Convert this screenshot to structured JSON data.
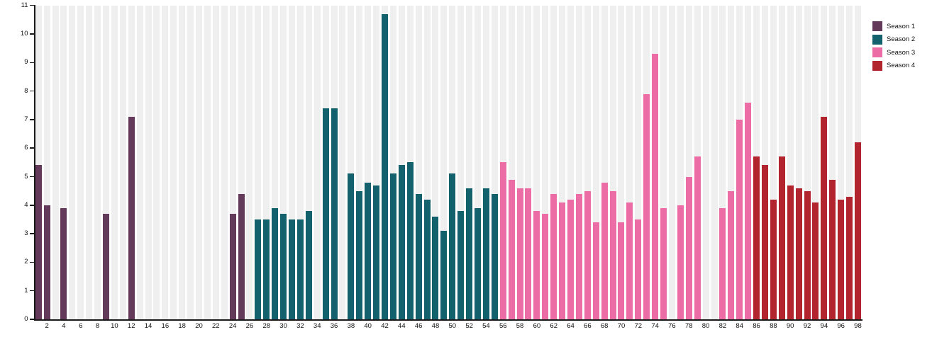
{
  "chart_data": {
    "type": "bar",
    "title": "",
    "xlabel": "",
    "ylabel": "",
    "x_range": [
      1,
      98
    ],
    "ylim": [
      0,
      11
    ],
    "y_ticks": [
      0,
      1,
      2,
      3,
      4,
      5,
      6,
      7,
      8,
      9,
      10,
      11
    ],
    "x_ticks": [
      2,
      4,
      6,
      8,
      10,
      12,
      14,
      16,
      18,
      20,
      22,
      24,
      26,
      28,
      30,
      32,
      34,
      36,
      38,
      40,
      42,
      44,
      46,
      48,
      50,
      52,
      54,
      56,
      58,
      60,
      62,
      64,
      66,
      68,
      70,
      72,
      74,
      76,
      78,
      80,
      82,
      84,
      86,
      88,
      90,
      92,
      94,
      96,
      98
    ],
    "grid": false,
    "background_stripes": true,
    "legend_position": "top-right",
    "series": [
      {
        "name": "Season 1",
        "color": "#643a5a",
        "points": [
          [
            1,
            5.4
          ],
          [
            2,
            4.0
          ],
          [
            4,
            3.9
          ],
          [
            9,
            3.7
          ],
          [
            12,
            7.1
          ],
          [
            24,
            3.7
          ],
          [
            25,
            4.4
          ]
        ]
      },
      {
        "name": "Season 2",
        "color": "#12616d",
        "points": [
          [
            27,
            3.5
          ],
          [
            28,
            3.5
          ],
          [
            29,
            3.9
          ],
          [
            30,
            3.7
          ],
          [
            31,
            3.5
          ],
          [
            32,
            3.5
          ],
          [
            33,
            3.8
          ],
          [
            35,
            7.4
          ],
          [
            36,
            7.4
          ],
          [
            38,
            5.1
          ],
          [
            39,
            4.5
          ],
          [
            40,
            4.8
          ],
          [
            41,
            4.7
          ],
          [
            42,
            10.7
          ],
          [
            43,
            5.1
          ],
          [
            44,
            5.4
          ],
          [
            45,
            5.5
          ],
          [
            46,
            4.4
          ],
          [
            47,
            4.2
          ],
          [
            48,
            3.6
          ],
          [
            49,
            3.1
          ],
          [
            50,
            5.1
          ],
          [
            51,
            3.8
          ],
          [
            52,
            4.6
          ],
          [
            53,
            3.9
          ],
          [
            54,
            4.6
          ],
          [
            55,
            4.4
          ]
        ]
      },
      {
        "name": "Season 3",
        "color": "#ec6da6",
        "points": [
          [
            56,
            5.5
          ],
          [
            57,
            4.9
          ],
          [
            58,
            4.6
          ],
          [
            59,
            4.6
          ],
          [
            60,
            3.8
          ],
          [
            61,
            3.7
          ],
          [
            62,
            4.4
          ],
          [
            63,
            4.1
          ],
          [
            64,
            4.2
          ],
          [
            65,
            4.4
          ],
          [
            66,
            4.5
          ],
          [
            67,
            3.4
          ],
          [
            68,
            4.8
          ],
          [
            69,
            4.5
          ],
          [
            70,
            3.4
          ],
          [
            71,
            4.1
          ],
          [
            72,
            3.5
          ],
          [
            73,
            7.9
          ],
          [
            74,
            9.3
          ],
          [
            75,
            3.9
          ],
          [
            77,
            4.0
          ],
          [
            78,
            5.0
          ],
          [
            79,
            5.7
          ],
          [
            82,
            3.9
          ],
          [
            83,
            4.5
          ],
          [
            84,
            7.0
          ],
          [
            85,
            7.6
          ]
        ]
      },
      {
        "name": "Season 4",
        "color": "#b2242e",
        "points": [
          [
            86,
            5.7
          ],
          [
            87,
            5.4
          ],
          [
            88,
            4.2
          ],
          [
            89,
            5.7
          ],
          [
            90,
            4.7
          ],
          [
            91,
            4.6
          ],
          [
            92,
            4.5
          ],
          [
            93,
            4.1
          ],
          [
            94,
            7.1
          ],
          [
            95,
            4.9
          ],
          [
            96,
            4.2
          ],
          [
            97,
            4.3
          ],
          [
            98,
            6.2
          ]
        ]
      }
    ]
  },
  "colors": {
    "stripe": "#efefef",
    "axis": "#1a1a1a",
    "plot_background": "#ffffff"
  }
}
